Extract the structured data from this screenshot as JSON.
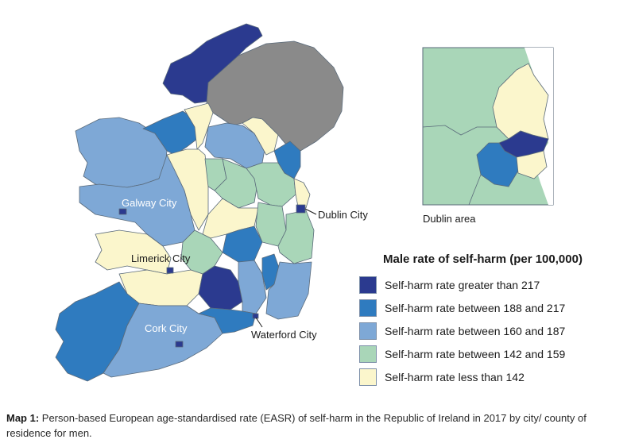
{
  "colors": {
    "gt217": "#2b3a8f",
    "r188_217": "#2f7bbf",
    "r160_187": "#7ea8d6",
    "r142_159": "#a9d6b8",
    "lt142": "#fbf6cc",
    "northern_ireland": "#8a8a8a",
    "border": "#5a6a7a"
  },
  "map_labels": {
    "galway": "Galway City",
    "limerick": "Limerick City",
    "cork": "Cork City",
    "dublin": "Dublin City",
    "waterford": "Waterford City",
    "inset": "Dublin area"
  },
  "legend": {
    "title": "Male rate of self-harm (per 100,000)",
    "items": [
      {
        "label": "Self-harm rate greater than 217",
        "color": "#2b3a8f"
      },
      {
        "label": "Self-harm rate between 188 and 217",
        "color": "#2f7bbf"
      },
      {
        "label": "Self-harm rate between 160 and 187",
        "color": "#7ea8d6"
      },
      {
        "label": "Self-harm rate between 142 and 159",
        "color": "#a9d6b8"
      },
      {
        "label": "Self-harm rate less than 142",
        "color": "#fbf6cc"
      }
    ]
  },
  "caption": {
    "prefix": "Map 1:",
    "text": " Person-based European age-standardised rate (EASR) of self-harm in the Republic of Ireland in 2017 by city/ county of residence for men."
  }
}
